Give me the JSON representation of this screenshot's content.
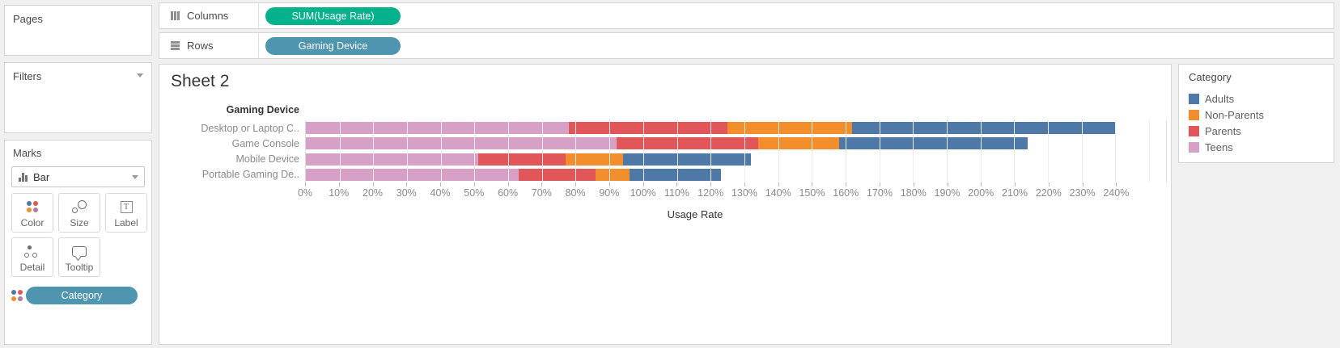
{
  "sidebar": {
    "pages": {
      "title": "Pages"
    },
    "filters": {
      "title": "Filters"
    },
    "marks": {
      "title": "Marks",
      "mark_type": "Bar",
      "buttons": [
        {
          "label": "Color"
        },
        {
          "label": "Size"
        },
        {
          "label": "Label"
        },
        {
          "label": "Detail"
        },
        {
          "label": "Tooltip"
        }
      ],
      "pill": "Category",
      "pill_color": "#4e95b0"
    }
  },
  "shelves": {
    "columns": {
      "label": "Columns",
      "pill": "SUM(Usage Rate)",
      "pill_color": "#03b28c"
    },
    "rows": {
      "label": "Rows",
      "pill": "Gaming Device",
      "pill_color": "#4e95b0"
    }
  },
  "chart_data": {
    "type": "bar",
    "stacked": true,
    "orientation": "horizontal",
    "title": "Sheet 2",
    "row_axis_header": "Gaming Device",
    "categories": [
      "Desktop or Laptop C..",
      "Game Console",
      "Mobile Device",
      "Portable Gaming De.."
    ],
    "series": [
      {
        "name": "Teens",
        "color": "#d7a1c7",
        "values": [
          78,
          92,
          51,
          63
        ]
      },
      {
        "name": "Parents",
        "color": "#e15759",
        "values": [
          47,
          42,
          26,
          23
        ]
      },
      {
        "name": "Non-Parents",
        "color": "#f28e2b",
        "values": [
          37,
          24,
          17,
          10
        ]
      },
      {
        "name": "Adults",
        "color": "#4e79a7",
        "values": [
          78,
          56,
          38,
          27
        ]
      }
    ],
    "xlabel": "Usage Rate",
    "xlim": [
      0,
      255
    ],
    "tick_step": 10,
    "x_ticks": [
      "0%",
      "10%",
      "20%",
      "30%",
      "40%",
      "50%",
      "60%",
      "70%",
      "80%",
      "90%",
      "100%",
      "110%",
      "120%",
      "130%",
      "140%",
      "150%",
      "160%",
      "170%",
      "180%",
      "190%",
      "200%",
      "210%",
      "220%",
      "230%",
      "240%"
    ],
    "grid": true,
    "legend_position": "right"
  },
  "legend": {
    "title": "Category",
    "items": [
      "Adults",
      "Non-Parents",
      "Parents",
      "Teens"
    ]
  }
}
